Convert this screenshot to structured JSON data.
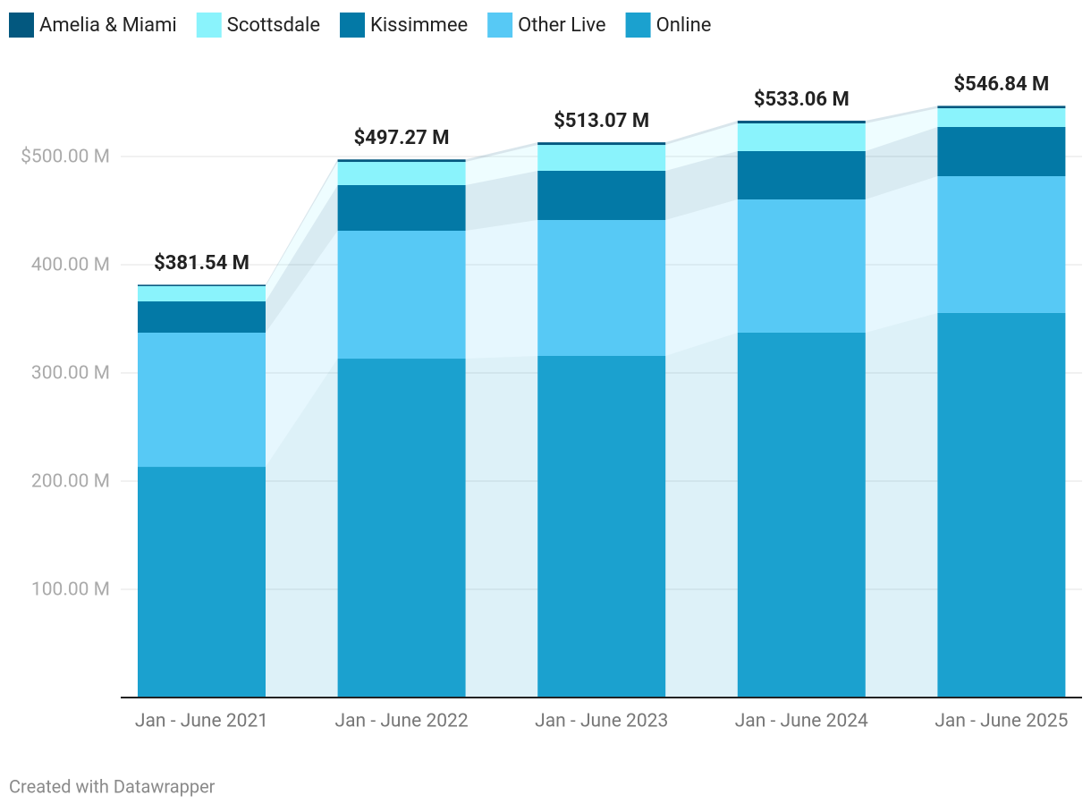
{
  "chart_data": {
    "type": "stacked_bar",
    "categories": [
      "Jan - June 2021",
      "Jan - June 2022",
      "Jan - June 2023",
      "Jan - June 2024",
      "Jan - June 2025"
    ],
    "series": [
      {
        "name": "Amelia & Miami",
        "color": "#03587f",
        "values": [
          1.3,
          2.3,
          2.4,
          2.5,
          2.2
        ]
      },
      {
        "name": "Scottsdale",
        "color": "#8af3fc",
        "values": [
          14.1,
          21.4,
          23.9,
          25.6,
          17.3
        ]
      },
      {
        "name": "Kissimmee",
        "color": "#0379a6",
        "values": [
          28.9,
          42.2,
          45.5,
          44.7,
          45.5
        ]
      },
      {
        "name": "Other Live",
        "color": "#57c9f5",
        "values": [
          124.0,
          118.2,
          125.6,
          123.1,
          126.4
        ]
      },
      {
        "name": "Online",
        "color": "#1ba1cf",
        "values": [
          213.2,
          313.2,
          315.7,
          337.2,
          355.4
        ]
      }
    ],
    "totals": {
      "values": [
        381.54,
        497.27,
        513.07,
        533.06,
        546.84
      ],
      "value_labels": [
        "$381.54 M",
        "$497.27 M",
        "$513.07 M",
        "$533.06 M",
        "$546.84 M"
      ]
    },
    "ylim": [
      0,
      550
    ],
    "yticks": [
      {
        "value": 100,
        "label": "100.00 M"
      },
      {
        "value": 200,
        "label": "200.00 M"
      },
      {
        "value": 300,
        "label": "300.00 M"
      },
      {
        "value": 400,
        "label": "400.00 M"
      },
      {
        "value": 500,
        "label": "$500.00 M"
      }
    ],
    "grid": true,
    "footer": "Created with Datawrapper"
  }
}
